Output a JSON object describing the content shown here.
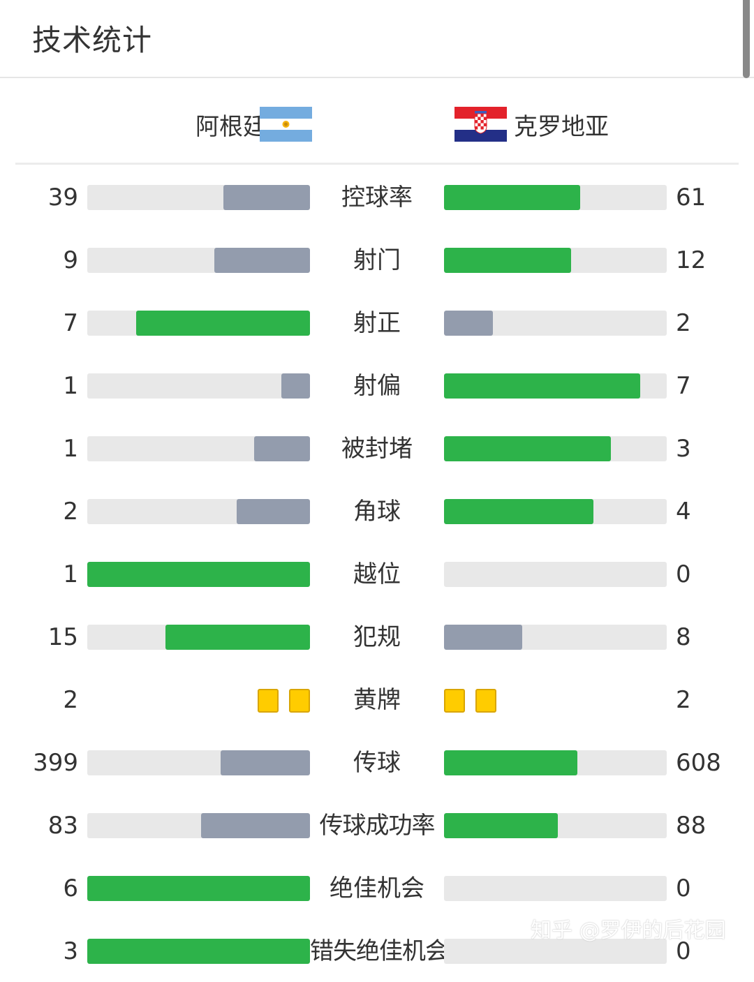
{
  "header": {
    "title": "技术统计"
  },
  "teams": {
    "home": {
      "name": "阿根廷",
      "flag_icon": "argentina-flag-icon"
    },
    "away": {
      "name": "克罗地亚",
      "flag_icon": "croatia-flag-icon"
    }
  },
  "colors": {
    "leading": "#2db34a",
    "trailing": "#939cad",
    "track": "#e8e8e8",
    "yellow_card": "#ffcc00"
  },
  "stats": [
    {
      "label": "控球率",
      "home": "39",
      "away": "61",
      "home_share": 0.39,
      "away_share": 0.61,
      "home_leads": false
    },
    {
      "label": "射门",
      "home": "9",
      "away": "12",
      "home_share": 0.43,
      "away_share": 0.57,
      "home_leads": false
    },
    {
      "label": "射正",
      "home": "7",
      "away": "2",
      "home_share": 0.78,
      "away_share": 0.22,
      "home_leads": true
    },
    {
      "label": "射偏",
      "home": "1",
      "away": "7",
      "home_share": 0.13,
      "away_share": 0.88,
      "home_leads": false
    },
    {
      "label": "被封堵",
      "home": "1",
      "away": "3",
      "home_share": 0.25,
      "away_share": 0.75,
      "home_leads": false
    },
    {
      "label": "角球",
      "home": "2",
      "away": "4",
      "home_share": 0.33,
      "away_share": 0.67,
      "home_leads": false
    },
    {
      "label": "越位",
      "home": "1",
      "away": "0",
      "home_share": 1.0,
      "away_share": 0.0,
      "home_leads": true
    },
    {
      "label": "犯规",
      "home": "15",
      "away": "8",
      "home_share": 0.65,
      "away_share": 0.35,
      "home_leads": true
    },
    {
      "label": "黄牌",
      "home": "2",
      "away": "2",
      "cards": true
    },
    {
      "label": "传球",
      "home": "399",
      "away": "608",
      "home_share": 0.4,
      "away_share": 0.6,
      "home_leads": false
    },
    {
      "label": "传球成功率",
      "home": "83",
      "away": "88",
      "home_share": 0.49,
      "away_share": 0.51,
      "home_leads": false
    },
    {
      "label": "绝佳机会",
      "home": "6",
      "away": "0",
      "home_share": 1.0,
      "away_share": 0.0,
      "home_leads": true
    },
    {
      "label": "错失绝佳机会",
      "home": "3",
      "away": "0",
      "home_share": 1.0,
      "away_share": 0.0,
      "home_leads": true
    }
  ],
  "watermark": "知乎 @罗伊的后花园"
}
